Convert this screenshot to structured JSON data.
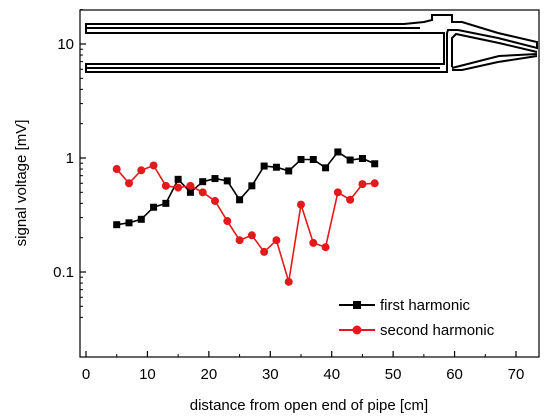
{
  "chart_data": {
    "type": "line",
    "xlabel": "distance from open end of pipe [cm]",
    "ylabel": "signal voltage [mV]",
    "xlim": [
      0,
      75
    ],
    "ylim": [
      0.035,
      20
    ],
    "yscale": "log",
    "x_ticks": [
      "0",
      "10",
      "20",
      "30",
      "40",
      "50",
      "60",
      "70"
    ],
    "y_ticks": [
      "0.1",
      "1",
      "10"
    ],
    "legend_position": "bottom-right",
    "series": [
      {
        "name": "first harmonic",
        "color": "#000000",
        "marker": "square",
        "x": [
          5,
          7,
          9,
          11,
          13,
          15,
          17,
          19,
          21,
          23,
          25,
          27,
          29,
          31,
          33,
          35,
          37,
          39,
          41,
          43,
          45,
          47
        ],
        "y": [
          0.26,
          0.27,
          0.29,
          0.37,
          0.4,
          0.65,
          0.5,
          0.62,
          0.66,
          0.63,
          0.43,
          0.57,
          0.85,
          0.83,
          0.77,
          0.97,
          0.97,
          0.82,
          1.13,
          0.96,
          0.99,
          0.89
        ]
      },
      {
        "name": "second harmonic",
        "color": "#e31a1c",
        "marker": "circle",
        "x": [
          5,
          7,
          9,
          11,
          13,
          15,
          17,
          19,
          21,
          23,
          25,
          27,
          29,
          31,
          33,
          35,
          37,
          39,
          41,
          43,
          45,
          47
        ],
        "y": [
          0.8,
          0.6,
          0.78,
          0.86,
          0.57,
          0.55,
          0.57,
          0.5,
          0.42,
          0.28,
          0.19,
          0.21,
          0.15,
          0.19,
          0.082,
          0.39,
          0.18,
          0.165,
          0.5,
          0.43,
          0.59,
          0.6
        ]
      }
    ],
    "illustration": "pipe-diagram"
  }
}
